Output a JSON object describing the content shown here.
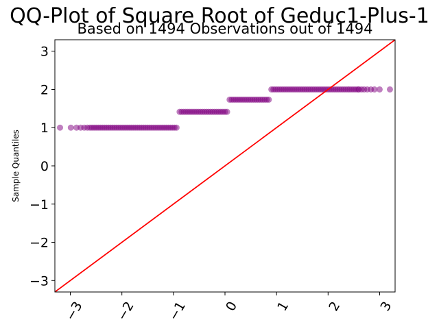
{
  "chart_data": {
    "type": "scatter",
    "title": "QQ-Plot of Square Root of Geduc1-Plus-1",
    "subtitle": "Based on 1494 Observations out of 1494",
    "xlabel": "",
    "ylabel": "Sample Quantiles",
    "xlim": [
      -3.3,
      3.3
    ],
    "ylim": [
      -3.3,
      3.3
    ],
    "xticks": [
      -3,
      -2,
      -1,
      0,
      1,
      2,
      3
    ],
    "xtick_labels": [
      "−3",
      "−2",
      "−1",
      "0",
      "1",
      "2",
      "3"
    ],
    "yticks": [
      -3,
      -2,
      -1,
      0,
      1,
      2,
      3
    ],
    "ytick_labels": [
      "−3",
      "−2",
      "−1",
      "0",
      "1",
      "2",
      "3"
    ],
    "xtick_rotation": 60,
    "grid": false,
    "colors": {
      "points": "#800080",
      "reference_line": "#ff0000"
    },
    "reference_line": {
      "slope": 1,
      "intercept": 0
    },
    "clusters": [
      {
        "y": 1.0,
        "x_start": -3.2,
        "x_end": -0.9,
        "sparse_x": [
          -3.2,
          -2.99,
          -2.88,
          -2.8,
          -2.73,
          -2.67,
          -2.62
        ]
      },
      {
        "y": 1.414,
        "x_start": -0.88,
        "x_end": 0.07
      },
      {
        "y": 1.732,
        "x_start": 0.09,
        "x_end": 0.88
      },
      {
        "y": 2.0,
        "x_start": 0.9,
        "x_end": 3.2,
        "sparse_x": [
          2.6,
          2.65,
          2.7,
          2.76,
          2.83,
          2.9,
          3.0,
          3.2
        ]
      }
    ]
  }
}
